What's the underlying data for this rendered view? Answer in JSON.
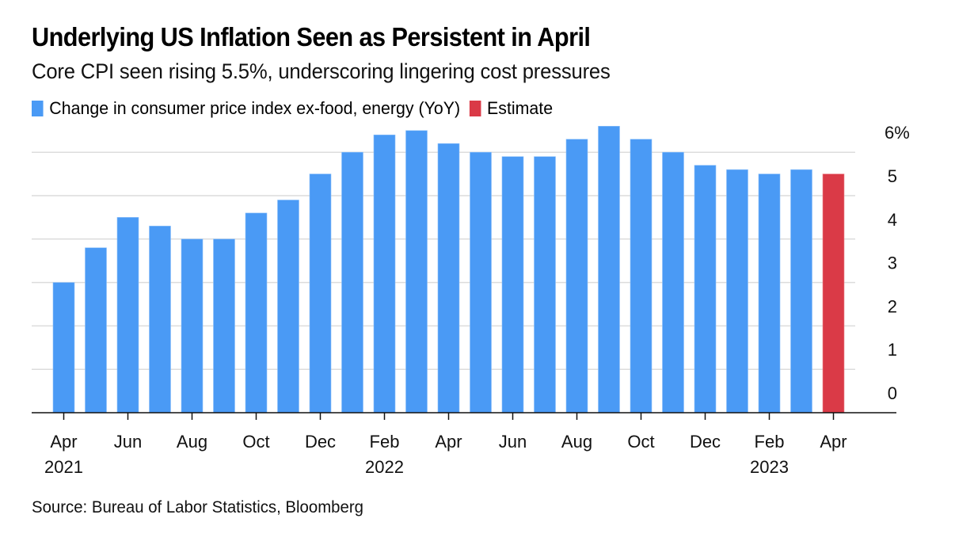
{
  "title": "Underlying US Inflation Seen as Persistent in April",
  "subtitle": "Core CPI seen rising 5.5%, underscoring lingering cost pressures",
  "legend": [
    {
      "label": "Change in consumer price index ex-food, energy (YoY)",
      "color": "#4a9af5"
    },
    {
      "label": "Estimate",
      "color": "#da3a47"
    }
  ],
  "source": "Source: Bureau of Labor Statistics, Bloomberg",
  "chart_data": {
    "type": "bar",
    "title": "Underlying US Inflation Seen as Persistent in April",
    "subtitle": "Core CPI seen rising 5.5%, underscoring lingering cost pressures",
    "xlabel": "",
    "ylabel": "",
    "ylim": [
      0,
      6.6
    ],
    "grid": true,
    "y_axis_side": "right",
    "legend_position": "top-left",
    "y_ticks": [
      {
        "value": 0,
        "label": "0"
      },
      {
        "value": 1,
        "label": "1"
      },
      {
        "value": 2,
        "label": "2"
      },
      {
        "value": 3,
        "label": "3"
      },
      {
        "value": 4,
        "label": "4"
      },
      {
        "value": 5,
        "label": "5"
      },
      {
        "value": 6,
        "label": "6%"
      }
    ],
    "categories": [
      "Apr 2021",
      "May 2021",
      "Jun 2021",
      "Jul 2021",
      "Aug 2021",
      "Sep 2021",
      "Oct 2021",
      "Nov 2021",
      "Dec 2021",
      "Jan 2022",
      "Feb 2022",
      "Mar 2022",
      "Apr 2022",
      "May 2022",
      "Jun 2022",
      "Jul 2022",
      "Aug 2022",
      "Sep 2022",
      "Oct 2022",
      "Nov 2022",
      "Dec 2022",
      "Jan 2023",
      "Feb 2023",
      "Mar 2023",
      "Apr 2023"
    ],
    "x_ticks": [
      {
        "index": 0,
        "label": "Apr",
        "year": "2021"
      },
      {
        "index": 2,
        "label": "Jun",
        "year": ""
      },
      {
        "index": 4,
        "label": "Aug",
        "year": ""
      },
      {
        "index": 6,
        "label": "Oct",
        "year": ""
      },
      {
        "index": 8,
        "label": "Dec",
        "year": ""
      },
      {
        "index": 10,
        "label": "Feb",
        "year": "2022"
      },
      {
        "index": 12,
        "label": "Apr",
        "year": ""
      },
      {
        "index": 14,
        "label": "Jun",
        "year": ""
      },
      {
        "index": 16,
        "label": "Aug",
        "year": ""
      },
      {
        "index": 18,
        "label": "Oct",
        "year": ""
      },
      {
        "index": 20,
        "label": "Dec",
        "year": ""
      },
      {
        "index": 22,
        "label": "Feb",
        "year": "2023"
      },
      {
        "index": 24,
        "label": "Apr",
        "year": ""
      }
    ],
    "series": [
      {
        "name": "Change in consumer price index ex-food, energy (YoY)",
        "color": "#4a9af5",
        "values": [
          3.0,
          3.8,
          4.5,
          4.3,
          4.0,
          4.0,
          4.6,
          4.9,
          5.5,
          6.0,
          6.4,
          6.5,
          6.2,
          6.0,
          5.9,
          5.9,
          6.3,
          6.6,
          6.3,
          6.0,
          5.7,
          5.6,
          5.5,
          5.6,
          null
        ]
      },
      {
        "name": "Estimate",
        "color": "#da3a47",
        "values": [
          null,
          null,
          null,
          null,
          null,
          null,
          null,
          null,
          null,
          null,
          null,
          null,
          null,
          null,
          null,
          null,
          null,
          null,
          null,
          null,
          null,
          null,
          null,
          null,
          5.5
        ]
      }
    ]
  }
}
